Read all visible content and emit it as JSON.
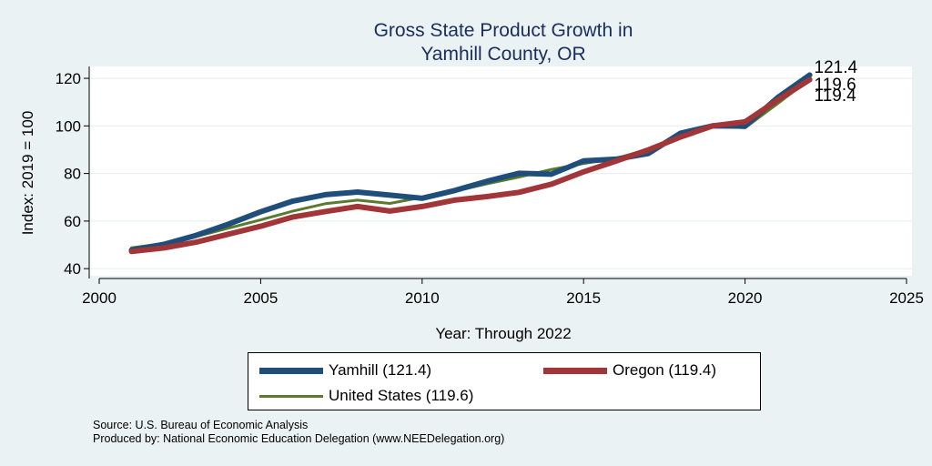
{
  "colors": {
    "background": "#eaf2f3",
    "plot_bg": "#ffffff",
    "grid": "#e8ecee",
    "title": "#1a2e5c"
  },
  "chart_data": {
    "type": "line",
    "title_lines": [
      "Gross State Product Growth in",
      "Yamhill County, OR"
    ],
    "xlabel": "Year: Through 2022",
    "ylabel": "Index: 2019 = 100",
    "xlim": [
      2000,
      2025
    ],
    "ylim": [
      37,
      125
    ],
    "xticks": [
      2000,
      2005,
      2010,
      2015,
      2020,
      2025
    ],
    "yticks": [
      40,
      60,
      80,
      100,
      120
    ],
    "grid": true,
    "x": [
      2001,
      2002,
      2003,
      2004,
      2005,
      2006,
      2007,
      2008,
      2009,
      2010,
      2011,
      2012,
      2013,
      2014,
      2015,
      2016,
      2017,
      2018,
      2019,
      2020,
      2021,
      2022
    ],
    "series": [
      {
        "name": "United States",
        "color": "#5b7a2e",
        "width": 3,
        "values": [
          48.8,
          50.6,
          53.5,
          57.0,
          60.5,
          64.2,
          67.3,
          68.8,
          67.4,
          70.0,
          72.5,
          75.6,
          78.5,
          81.7,
          84.2,
          86.3,
          90.2,
          95.5,
          100.0,
          99.2,
          109.3,
          119.6
        ]
      },
      {
        "name": "Yamhill",
        "color": "#1f4e7a",
        "width": 6,
        "values": [
          47.8,
          50.2,
          54.0,
          58.7,
          63.9,
          68.4,
          71.1,
          72.2,
          70.9,
          69.6,
          72.8,
          76.7,
          80.1,
          79.7,
          85.3,
          86.0,
          88.4,
          96.9,
          100.0,
          99.9,
          111.8,
          121.4
        ]
      },
      {
        "name": "Oregon",
        "color": "#a13538",
        "width": 6,
        "values": [
          47.2,
          48.7,
          51.1,
          54.5,
          57.8,
          61.7,
          64.0,
          66.1,
          64.2,
          66.1,
          68.8,
          70.3,
          72.1,
          75.5,
          80.7,
          85.2,
          89.9,
          95.3,
          100.0,
          101.7,
          110.8,
          119.4
        ]
      }
    ],
    "end_labels": [
      "121.4",
      "119.6",
      "119.4"
    ],
    "legend": [
      {
        "label": "Yamhill  (121.4)",
        "color": "#1f4e7a"
      },
      {
        "label": "Oregon (119.4)",
        "color": "#a13538"
      },
      {
        "label": "United States (119.6)",
        "color": "#5b7a2e"
      }
    ],
    "legend_position": "bottom"
  },
  "footer": {
    "source": "Source: U.S. Bureau of Economic Analysis",
    "produced_by": "Produced by: National Economic Education Delegation (www.NEEDelegation.org)"
  }
}
